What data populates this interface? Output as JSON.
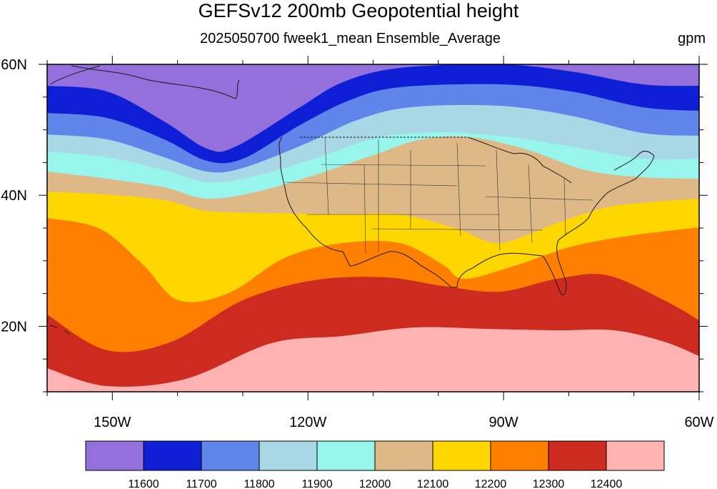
{
  "title": "GEFSv12 200mb Geopotential height",
  "subtitle": "2025050700 fweek1_mean Ensemble_Average",
  "units": "gpm",
  "map": {
    "lon_range": [
      -160,
      -60
    ],
    "lat_range": [
      10,
      60
    ],
    "x_ticks": [
      {
        "lon": -150,
        "label": "150W"
      },
      {
        "lon": -120,
        "label": "120W"
      },
      {
        "lon": -90,
        "label": "90W"
      },
      {
        "lon": -60,
        "label": "60W"
      }
    ],
    "y_ticks": [
      {
        "lat": 60,
        "label": "60N"
      },
      {
        "lat": 40,
        "label": "40N"
      },
      {
        "lat": 20,
        "label": "20N"
      }
    ]
  },
  "colorbar": {
    "colors": [
      "#9370db",
      "#0f1fd6",
      "#5f84ea",
      "#a8d8e6",
      "#98f5eb",
      "#deb887",
      "#ffd700",
      "#ff7f00",
      "#cd2a20",
      "#ffb2b2"
    ],
    "labels": [
      "11600",
      "11700",
      "11800",
      "11900",
      "12000",
      "12100",
      "12200",
      "12300",
      "12400"
    ]
  }
}
